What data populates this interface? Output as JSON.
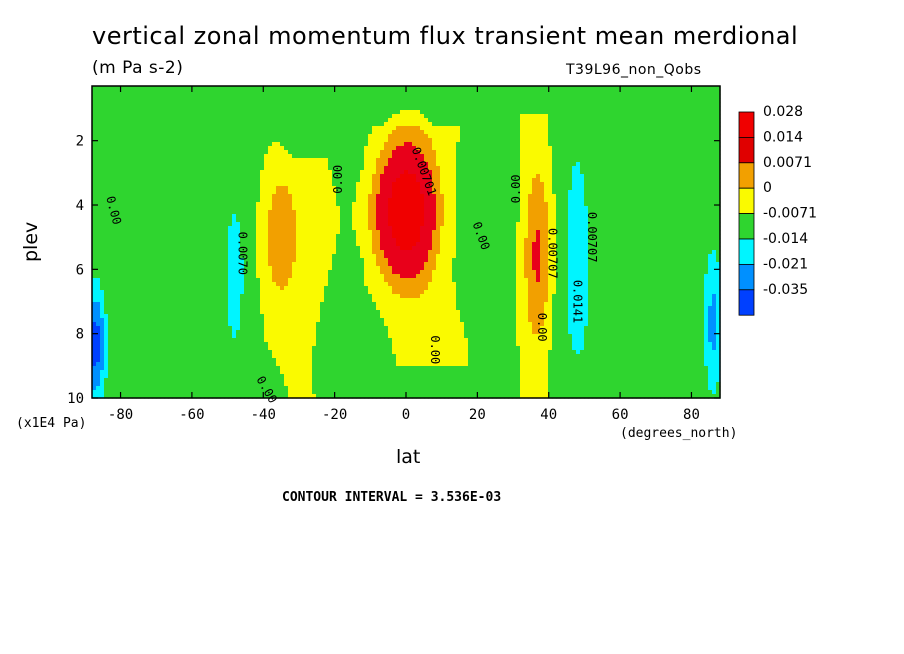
{
  "chart_data": {
    "type": "heatmap",
    "title": "vertical zonal momentum flux transient mean merdional",
    "units": "(m Pa s-2)",
    "dataset": "T39L96_non_Qobs",
    "xlabel": "lat",
    "xunits": "(degrees_north)",
    "ylabel": "plev",
    "yunits": "(x1E4 Pa)",
    "x_ticks": [
      "-80",
      "-60",
      "-40",
      "-20",
      "0",
      "20",
      "40",
      "60",
      "80"
    ],
    "y_ticks": [
      "2",
      "4",
      "6",
      "8",
      "10"
    ],
    "xlim": [
      -88,
      88
    ],
    "ylim": [
      10,
      0.3
    ],
    "contour_interval_text": "CONTOUR INTERVAL = 3.536E-03",
    "colorbar": {
      "labels": [
        "0.028",
        "0.014",
        "0.0071",
        "0",
        "-0.0071",
        "-0.014",
        "-0.021",
        "-0.035"
      ],
      "colors": [
        "#f00000",
        "#e00000",
        "#f2a000",
        "#fafa00",
        "#2fd52f",
        "#00f5ff",
        "#0090ff",
        "#0040ff"
      ]
    },
    "contour_labels": [
      {
        "text": "0.00",
        "lat": -83,
        "plev": 4.2,
        "rot": 75
      },
      {
        "text": "0.0070",
        "lat": -47,
        "plev": 5.5,
        "rot": 90
      },
      {
        "text": "0.00",
        "lat": -40,
        "plev": 9.8,
        "rot": 60
      },
      {
        "text": "0.00",
        "lat": -18,
        "plev": 3.2,
        "rot": -90
      },
      {
        "text": "0.00701",
        "lat": 4,
        "plev": 3.0,
        "rot": 70
      },
      {
        "text": "0.00",
        "lat": 20,
        "plev": 5.0,
        "rot": 70
      },
      {
        "text": "0.00",
        "lat": 7,
        "plev": 8.5,
        "rot": 90
      },
      {
        "text": "0.00",
        "lat": 32,
        "plev": 3.5,
        "rot": -90
      },
      {
        "text": "0.00707",
        "lat": 40,
        "plev": 5.5,
        "rot": 90
      },
      {
        "text": "0.00",
        "lat": 37,
        "plev": 7.8,
        "rot": 90
      },
      {
        "text": "0.0141",
        "lat": 47,
        "plev": 7.0,
        "rot": 90
      },
      {
        "text": "0.00707",
        "lat": 51,
        "plev": 5.0,
        "rot": 90
      }
    ],
    "features": [
      {
        "sign": "+",
        "lat": -36,
        "plev": 5.0,
        "peak": 0.009,
        "dlat": 6,
        "dp": 2.6
      },
      {
        "sign": "+",
        "lat": 0,
        "plev": 4.2,
        "peak": 0.03,
        "dlat": 8,
        "dp": 2.0
      },
      {
        "sign": "+",
        "lat": 37,
        "plev": 5.6,
        "peak": 0.01,
        "dlat": 4,
        "dp": 2.6
      },
      {
        "sign": "-",
        "lat": -48,
        "plev": 6.5,
        "peak": -0.012,
        "dlat": 3.5,
        "dp": 3.0
      },
      {
        "sign": "-",
        "lat": 48,
        "plev": 5.5,
        "peak": -0.016,
        "dlat": 4,
        "dp": 3.5
      },
      {
        "sign": "-",
        "lat": -87,
        "plev": 8.3,
        "peak": -0.024,
        "dlat": 3,
        "dp": 2.0
      },
      {
        "sign": "-",
        "lat": 86,
        "plev": 7.8,
        "peak": -0.018,
        "dlat": 3,
        "dp": 2.5
      }
    ]
  }
}
